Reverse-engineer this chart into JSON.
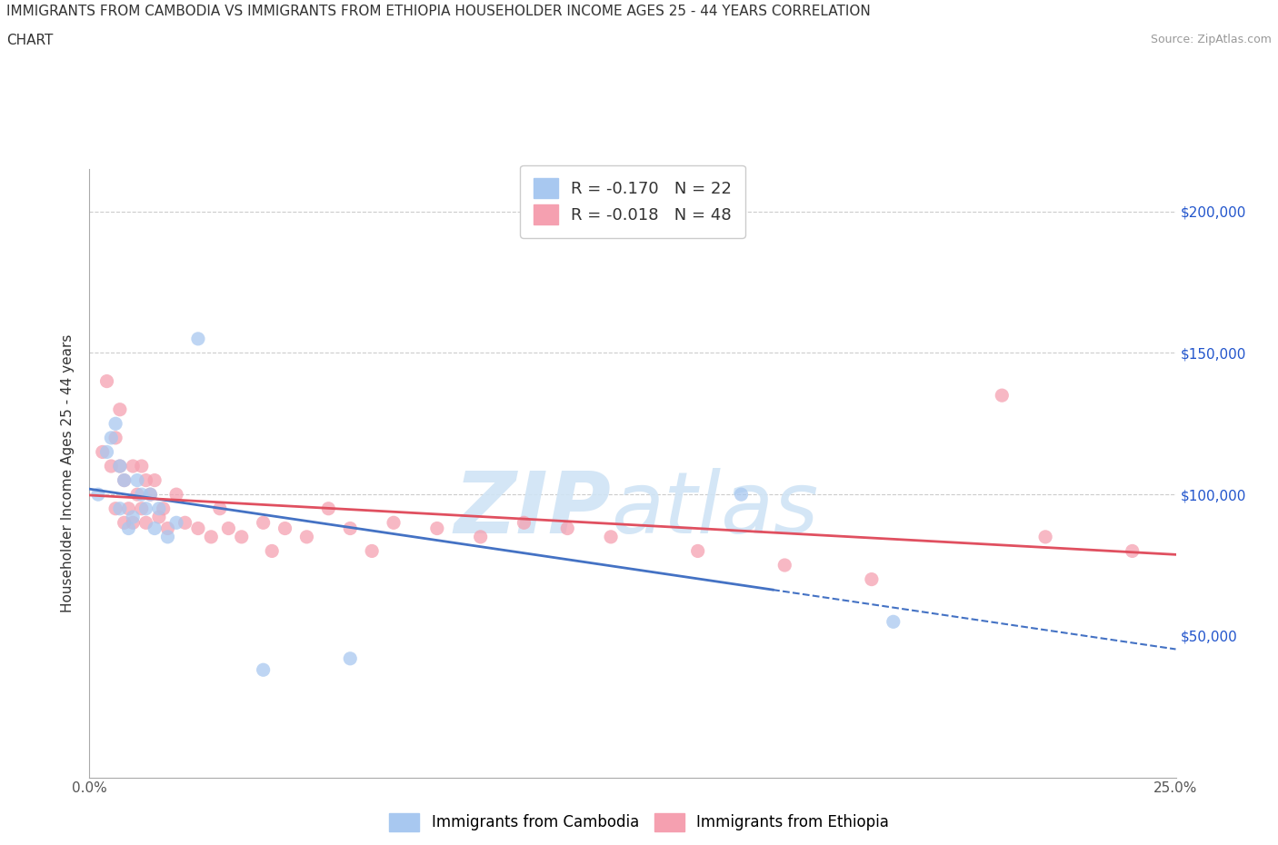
{
  "title_line1": "IMMIGRANTS FROM CAMBODIA VS IMMIGRANTS FROM ETHIOPIA HOUSEHOLDER INCOME AGES 25 - 44 YEARS CORRELATION",
  "title_line2": "CHART",
  "source": "Source: ZipAtlas.com",
  "ylabel": "Householder Income Ages 25 - 44 years",
  "xlim": [
    0.0,
    0.25
  ],
  "ylim": [
    0,
    215000
  ],
  "cambodia_color": "#a8c8f0",
  "ethiopia_color": "#f5a0b0",
  "cambodia_line_color": "#4472c4",
  "ethiopia_line_color": "#e05060",
  "cambodia_R": -0.17,
  "cambodia_N": 22,
  "ethiopia_R": -0.018,
  "ethiopia_N": 48,
  "legend_label_cambodia": "Immigrants from Cambodia",
  "legend_label_ethiopia": "Immigrants from Ethiopia",
  "cambodia_x": [
    0.002,
    0.004,
    0.005,
    0.006,
    0.007,
    0.007,
    0.008,
    0.009,
    0.01,
    0.011,
    0.012,
    0.013,
    0.014,
    0.015,
    0.016,
    0.018,
    0.02,
    0.025,
    0.04,
    0.06,
    0.15,
    0.185
  ],
  "cambodia_y": [
    100000,
    115000,
    120000,
    125000,
    110000,
    95000,
    105000,
    88000,
    92000,
    105000,
    100000,
    95000,
    100000,
    88000,
    95000,
    85000,
    90000,
    155000,
    38000,
    42000,
    100000,
    55000
  ],
  "ethiopia_x": [
    0.003,
    0.004,
    0.005,
    0.006,
    0.006,
    0.007,
    0.007,
    0.008,
    0.008,
    0.009,
    0.01,
    0.01,
    0.011,
    0.012,
    0.012,
    0.013,
    0.013,
    0.014,
    0.015,
    0.016,
    0.017,
    0.018,
    0.02,
    0.022,
    0.025,
    0.028,
    0.03,
    0.032,
    0.035,
    0.04,
    0.042,
    0.045,
    0.05,
    0.055,
    0.06,
    0.065,
    0.07,
    0.08,
    0.09,
    0.1,
    0.11,
    0.12,
    0.14,
    0.16,
    0.18,
    0.21,
    0.22,
    0.24
  ],
  "ethiopia_y": [
    115000,
    140000,
    110000,
    120000,
    95000,
    130000,
    110000,
    105000,
    90000,
    95000,
    110000,
    90000,
    100000,
    110000,
    95000,
    105000,
    90000,
    100000,
    105000,
    92000,
    95000,
    88000,
    100000,
    90000,
    88000,
    85000,
    95000,
    88000,
    85000,
    90000,
    80000,
    88000,
    85000,
    95000,
    88000,
    80000,
    90000,
    88000,
    85000,
    90000,
    88000,
    85000,
    80000,
    75000,
    70000,
    135000,
    85000,
    80000
  ],
  "background_color": "#ffffff",
  "grid_color": "#cccccc",
  "watermark_color": "#d0e4f5",
  "scatter_size": 120,
  "scatter_alpha": 0.75
}
